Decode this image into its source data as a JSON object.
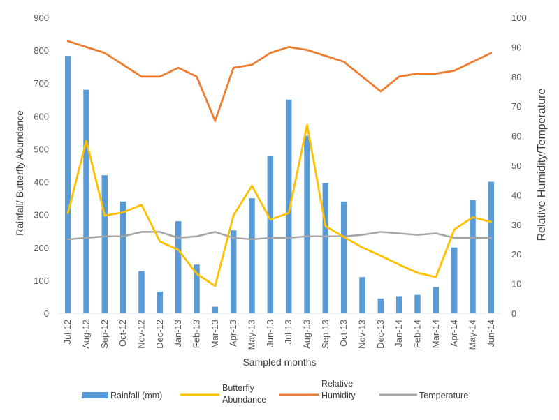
{
  "chart_data": {
    "type": "bar",
    "categories": [
      "Jul-12",
      "Aug-12",
      "Sep-12",
      "Oct-12",
      "Nov-12",
      "Dec-12",
      "Jan-13",
      "Feb-13",
      "Mar-13",
      "Apr-13",
      "May-13",
      "Jun-13",
      "Jul-13",
      "Aug-13",
      "Sep-13",
      "Oct-13",
      "Nov-13",
      "Dec-13",
      "Jan-14",
      "Feb-14",
      "Mar-14",
      "Apr-14",
      "May-14",
      "Jun-14"
    ],
    "xlabel": "Sampled months",
    "ylabel": "Rainfall/ Butterfly Abundance",
    "y2label": "Relative Humidity/Temperature",
    "ylim": [
      0,
      900
    ],
    "y2lim": [
      0,
      100
    ],
    "yticks": [
      0,
      100,
      200,
      300,
      400,
      500,
      600,
      700,
      800,
      900
    ],
    "y2ticks": [
      0,
      10,
      20,
      30,
      40,
      50,
      60,
      70,
      80,
      90,
      100
    ],
    "legend_position": "bottom",
    "grid": false,
    "series": [
      {
        "name": "Rainfall (mm)",
        "type": "bar",
        "axis": "left",
        "color": "#5B9BD5",
        "values": [
          783,
          680,
          420,
          340,
          128,
          66,
          280,
          148,
          20,
          252,
          350,
          478,
          650,
          540,
          396,
          340,
          110,
          45,
          52,
          56,
          80,
          200,
          344,
          400
        ]
      },
      {
        "name": "Butterfly Abundance",
        "type": "line",
        "axis": "left",
        "color": "#FFC000",
        "values": [
          305,
          525,
          297,
          307,
          330,
          218,
          193,
          120,
          83,
          298,
          388,
          285,
          305,
          573,
          265,
          232,
          200,
          175,
          148,
          123,
          110,
          255,
          292,
          278
        ]
      },
      {
        "name": "Relative Humidity",
        "type": "line",
        "axis": "right",
        "color": "#ED7D31",
        "values": [
          92,
          90,
          88,
          84,
          80,
          80,
          83,
          80,
          65,
          83,
          84,
          88,
          90,
          89,
          87,
          85,
          80,
          75,
          80,
          81,
          81,
          82,
          85,
          88
        ]
      },
      {
        "name": "Temperature",
        "type": "line",
        "axis": "right",
        "color": "#A5A5A5",
        "values": [
          25,
          25.5,
          26,
          26,
          27.5,
          27.5,
          25.5,
          26,
          27.5,
          25.5,
          25,
          25.5,
          25.5,
          26,
          26,
          26,
          26.5,
          27.5,
          27,
          26.5,
          27,
          25.5,
          25.5,
          25.5
        ]
      }
    ],
    "legend": [
      {
        "label": "Rainfall (mm)",
        "marker": "bar",
        "color": "#5B9BD5"
      },
      {
        "label": "Butterfly Abundance",
        "marker": "line",
        "color": "#FFC000"
      },
      {
        "label": "Relative Humidity",
        "marker": "line",
        "color": "#ED7D31"
      },
      {
        "label": "Temperature",
        "marker": "line",
        "color": "#A5A5A5"
      }
    ]
  }
}
